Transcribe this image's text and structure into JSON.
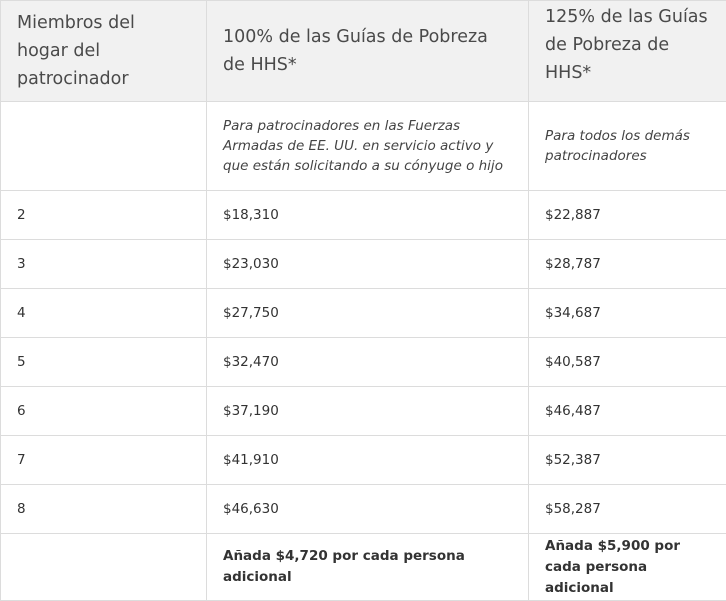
{
  "table": {
    "headers": [
      "Miembros del hogar del patrocinador",
      "100% de las Guías de Pobreza de HHS*",
      "125% de las Guías de Pobreza de HHS*"
    ],
    "subheaders": [
      "",
      "Para patrocinadores en las Fuerzas Armadas de EE. UU. en servicio activo y que están solicitando a su cónyuge o hijo",
      "Para todos los demás patrocinadores"
    ],
    "rows": [
      [
        "2",
        "$18,310",
        "$22,887"
      ],
      [
        "3",
        "$23,030",
        "$28,787"
      ],
      [
        "4",
        "$27,750",
        "$34,687"
      ],
      [
        "5",
        "$32,470",
        "$40,587"
      ],
      [
        "6",
        "$37,190",
        "$46,487"
      ],
      [
        "7",
        "$41,910",
        "$52,387"
      ],
      [
        "8",
        "$46,630",
        "$58,287"
      ]
    ],
    "footer": [
      "",
      "Añada $4,720 por cada persona adicional",
      "Añada $5,900 por cada persona adicional"
    ]
  }
}
